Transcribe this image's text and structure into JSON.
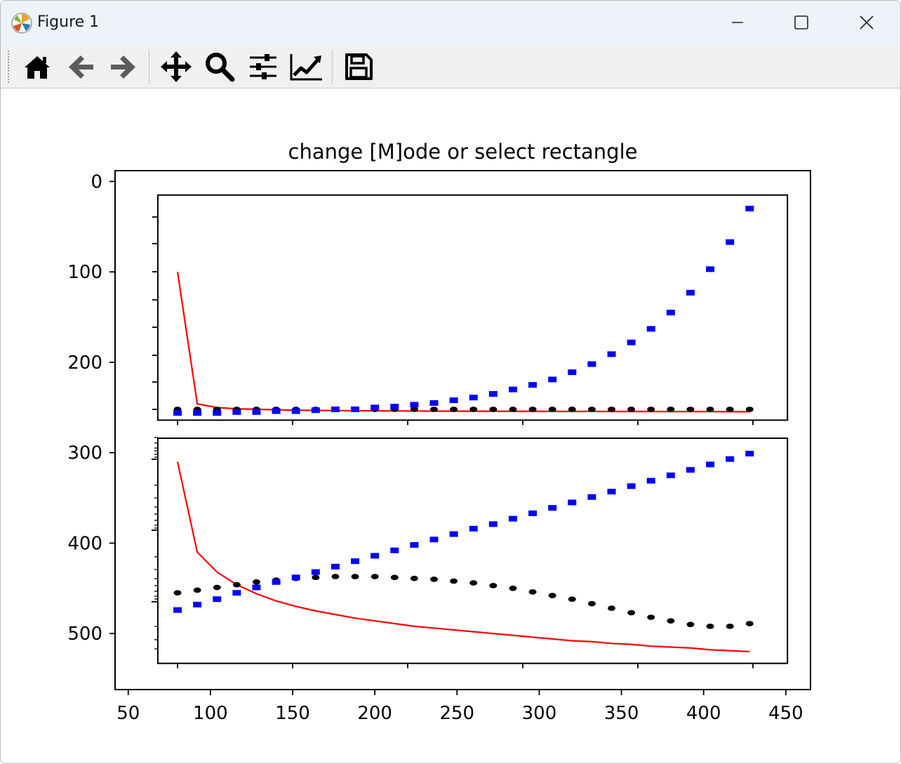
{
  "window": {
    "title": "Figure 1",
    "controls": {
      "minimize": "minimize",
      "maximize": "maximize",
      "close": "close"
    }
  },
  "toolbar": {
    "buttons": [
      {
        "name": "home",
        "icon": "home-icon"
      },
      {
        "name": "back",
        "icon": "arrow-left-icon"
      },
      {
        "name": "forward",
        "icon": "arrow-right-icon"
      },
      {
        "name": "pan",
        "icon": "move-icon"
      },
      {
        "name": "zoom",
        "icon": "magnifier-icon"
      },
      {
        "name": "subplots",
        "icon": "sliders-icon"
      },
      {
        "name": "customize",
        "icon": "chart-line-icon"
      },
      {
        "name": "save",
        "icon": "floppy-disk-icon"
      }
    ]
  },
  "chart_data": [
    {
      "type": "scatter",
      "role": "outer-axes",
      "title": "change [M]ode or select rectangle",
      "xlim": [
        42,
        465
      ],
      "ylim": [
        562,
        -12
      ],
      "y_inverted": true,
      "x_ticks": [
        50,
        100,
        150,
        200,
        250,
        300,
        350,
        400,
        450
      ],
      "x_tick_labels": [
        "50",
        "100",
        "150",
        "200",
        "250",
        "300",
        "350",
        "400",
        "450"
      ],
      "y_ticks": [
        0,
        100,
        200,
        300,
        400,
        500
      ],
      "y_tick_labels": [
        "0",
        "100",
        "200",
        "300",
        "400",
        "500"
      ],
      "grid": false,
      "series": []
    },
    {
      "type": "line",
      "role": "inset-top",
      "x": [
        80,
        92,
        104,
        116,
        128,
        140,
        152,
        164,
        176,
        188,
        200,
        212,
        224,
        236,
        248,
        260,
        272,
        284,
        296,
        308,
        320,
        332,
        344,
        356,
        368,
        380,
        392,
        404,
        416,
        428
      ],
      "series": [
        {
          "style": "red-line",
          "color": "#ff0000",
          "values": [
            100,
            246,
            250,
            251.5,
            252,
            252.5,
            253,
            253.2,
            253.4,
            253.6,
            253.7,
            253.8,
            253.9,
            254,
            254,
            254.1,
            254.1,
            254.2,
            254.2,
            254.3,
            254.3,
            254.3,
            254.4,
            254.4,
            254.4,
            254.5,
            254.5,
            254.5,
            254.6,
            254.6
          ]
        },
        {
          "style": "black-dots",
          "color": "#000000",
          "values": [
            252,
            252,
            252,
            252,
            252,
            252,
            252,
            252,
            252,
            252,
            252,
            252,
            252,
            252,
            252,
            252,
            252,
            252,
            252,
            252,
            252,
            252,
            252,
            252,
            252,
            252,
            252,
            252,
            252,
            252
          ]
        },
        {
          "style": "blue-squares",
          "color": "#0000ff",
          "values": [
            256,
            256,
            256,
            255,
            255,
            254,
            254,
            253,
            252,
            252,
            250,
            249,
            247,
            245,
            242,
            239,
            235,
            230,
            225,
            219,
            211,
            202,
            191,
            178,
            163,
            145,
            123,
            97,
            67,
            30
          ]
        }
      ]
    },
    {
      "type": "line",
      "role": "inset-bottom",
      "x": [
        80,
        92,
        104,
        116,
        128,
        140,
        152,
        164,
        176,
        188,
        200,
        212,
        224,
        236,
        248,
        260,
        272,
        284,
        296,
        308,
        320,
        332,
        344,
        356,
        368,
        380,
        392,
        404,
        416,
        428
      ],
      "series": [
        {
          "style": "red-line",
          "color": "#ff0000",
          "values": [
            310,
            410,
            432,
            446,
            456,
            464,
            470,
            475,
            479,
            483,
            486,
            489,
            492,
            494,
            496,
            498,
            500,
            502,
            504,
            506,
            508,
            509,
            511,
            512,
            514,
            515,
            516,
            518,
            519,
            520
          ]
        },
        {
          "style": "black-dots",
          "color": "#000000",
          "values": [
            455,
            452,
            449,
            446,
            443,
            441,
            439,
            438,
            437,
            437,
            437,
            438,
            439,
            440,
            442,
            444,
            447,
            450,
            454,
            458,
            462,
            467,
            472,
            477,
            482,
            486,
            490,
            492,
            492,
            489
          ]
        },
        {
          "style": "blue-squares",
          "color": "#0000ff",
          "values": [
            474,
            468,
            462,
            455,
            449,
            443,
            438,
            432,
            426,
            420,
            414,
            408,
            402,
            396,
            390,
            384,
            379,
            373,
            367,
            361,
            355,
            349,
            343,
            337,
            331,
            325,
            319,
            313,
            307,
            301
          ]
        }
      ]
    }
  ]
}
